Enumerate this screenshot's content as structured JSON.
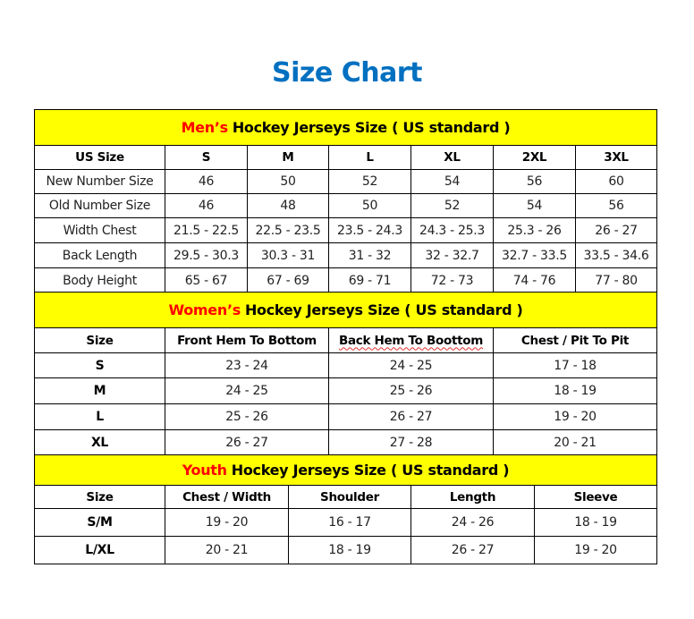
{
  "title": "Size Chart",
  "colors": {
    "title": "#0070c0",
    "header_bg": "#ffff00",
    "accent": "#ff0000"
  },
  "men": {
    "accent": "Men’s",
    "heading": "Hockey Jerseys Size ( US standard )",
    "columns": [
      "US Size",
      "S",
      "M",
      "L",
      "XL",
      "2XL",
      "3XL"
    ],
    "rows": [
      [
        "New Number Size",
        "46",
        "50",
        "52",
        "54",
        "56",
        "60"
      ],
      [
        "Old Number Size",
        "46",
        "48",
        "50",
        "52",
        "54",
        "56"
      ],
      [
        "Width Chest",
        "21.5 - 22.5",
        "22.5 - 23.5",
        "23.5 - 24.3",
        "24.3 - 25.3",
        "25.3 - 26",
        "26 - 27"
      ],
      [
        "Back Length",
        "29.5 - 30.3",
        "30.3 - 31",
        "31 - 32",
        "32 - 32.7",
        "32.7 - 33.5",
        "33.5 - 34.6"
      ],
      [
        "Body Height",
        "65 - 67",
        "67 - 69",
        "69 - 71",
        "72 - 73",
        "74 - 76",
        "77 - 80"
      ]
    ]
  },
  "women": {
    "accent": "Women’s",
    "heading": "Hockey Jerseys Size ( US standard )",
    "columns": [
      "Size",
      "Front Hem To Bottom",
      "Back Hem To Boottom",
      "Chest / Pit To Pit"
    ],
    "rows": [
      [
        "S",
        "23 - 24",
        "24 - 25",
        "17 - 18"
      ],
      [
        "M",
        "24 - 25",
        "25 - 26",
        "18 - 19"
      ],
      [
        "L",
        "25 - 26",
        "26 - 27",
        "19 - 20"
      ],
      [
        "XL",
        "26 - 27",
        "27 - 28",
        "20 - 21"
      ]
    ]
  },
  "youth": {
    "accent": "Youth",
    "heading": "Hockey Jerseys Size ( US standard )",
    "columns": [
      "Size",
      "Chest / Width",
      "Shoulder",
      "Length",
      "Sleeve"
    ],
    "rows": [
      [
        "S/M",
        "19 - 20",
        "16 - 17",
        "24 - 26",
        "18 - 19"
      ],
      [
        "L/XL",
        "20 - 21",
        "18 - 19",
        "26 - 27",
        "19 - 20"
      ]
    ]
  }
}
